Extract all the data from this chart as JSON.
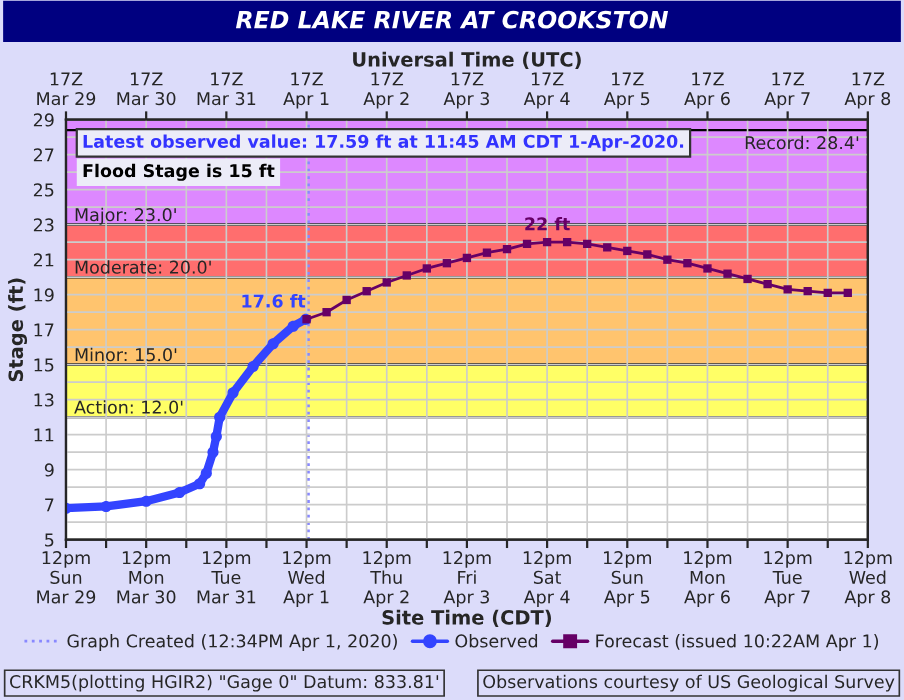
{
  "chart_data": {
    "type": "line",
    "title": "RED LAKE RIVER AT CROOKSTON",
    "xlabel": "Site Time (CDT)",
    "x2label": "Universal Time (UTC)",
    "ylabel": "Stage (ft)",
    "xlim": [
      "2020-03-29T12:00",
      "2020-04-08T12:00"
    ],
    "xticks": [
      {
        "value": "2020-03-29T12:00",
        "label": "12pm\nSun\nMar 29"
      },
      {
        "value": "2020-03-30T00:00",
        "label": null
      },
      {
        "value": "2020-03-30T12:00",
        "label": "12pm\nMon\nMar 30"
      },
      {
        "value": "2020-03-31T00:00",
        "label": null
      },
      {
        "value": "2020-03-31T12:00",
        "label": "12pm\nTue\nMar 31"
      },
      {
        "value": "2020-04-01T00:00",
        "label": null
      },
      {
        "value": "2020-04-01T12:00",
        "label": "12pm\nWed\nApr 1"
      },
      {
        "value": "2020-04-02T00:00",
        "label": null
      },
      {
        "value": "2020-04-02T12:00",
        "label": "12pm\nThu\nApr 2"
      },
      {
        "value": "2020-04-03T00:00",
        "label": null
      },
      {
        "value": "2020-04-03T12:00",
        "label": "12pm\nFri\nApr 3"
      },
      {
        "value": "2020-04-04T00:00",
        "label": null
      },
      {
        "value": "2020-04-04T12:00",
        "label": "12pm\nSat\nApr 4"
      },
      {
        "value": "2020-04-05T00:00",
        "label": null
      },
      {
        "value": "2020-04-05T12:00",
        "label": "12pm\nSun\nApr 5"
      },
      {
        "value": "2020-04-06T00:00",
        "label": null
      },
      {
        "value": "2020-04-06T12:00",
        "label": "12pm\nMon\nApr 6"
      },
      {
        "value": "2020-04-07T00:00",
        "label": null
      },
      {
        "value": "2020-04-07T12:00",
        "label": "12pm\nTue\nApr 7"
      },
      {
        "value": "2020-04-08T00:00",
        "label": null
      },
      {
        "value": "2020-04-08T12:00",
        "label": "12pm\nWed\nApr 8"
      }
    ],
    "x2lim": [
      "2020-03-29T12:00",
      "2020-04-08T12:00"
    ],
    "x2ticks": [
      {
        "value": "2020-03-29T12:00",
        "label": "17Z\nMar 29"
      },
      {
        "value": "2020-03-30T12:00",
        "label": "17Z\nMar 30"
      },
      {
        "value": "2020-03-31T12:00",
        "label": "17Z\nMar 31"
      },
      {
        "value": "2020-04-01T12:00",
        "label": "17Z\nApr 1"
      },
      {
        "value": "2020-04-02T12:00",
        "label": "17Z\nApr 2"
      },
      {
        "value": "2020-04-03T12:00",
        "label": "17Z\nApr 3"
      },
      {
        "value": "2020-04-04T12:00",
        "label": "17Z\nApr 4"
      },
      {
        "value": "2020-04-05T12:00",
        "label": "17Z\nApr 5"
      },
      {
        "value": "2020-04-06T12:00",
        "label": "17Z\nApr 6"
      },
      {
        "value": "2020-04-07T12:00",
        "label": "17Z\nApr 7"
      },
      {
        "value": "2020-04-08T12:00",
        "label": "17Z\nApr 8"
      }
    ],
    "ylim": [
      5,
      29
    ],
    "yticks": [
      5,
      {
        "value": 6,
        "label": null
      },
      7,
      {
        "value": 8,
        "label": null
      },
      9,
      {
        "value": 10,
        "label": null
      },
      11,
      {
        "value": 12,
        "label": null
      },
      13,
      {
        "value": 14,
        "label": null
      },
      15,
      {
        "value": 16,
        "label": null
      },
      17,
      {
        "value": 18,
        "label": null
      },
      19,
      {
        "value": 20,
        "label": null
      },
      21,
      {
        "value": 22,
        "label": null
      },
      23,
      {
        "value": 24,
        "label": null
      },
      25,
      {
        "value": 26,
        "label": null
      },
      27,
      {
        "value": 28,
        "label": null
      },
      29
    ],
    "grid": true,
    "legend": "bottom",
    "line_style": "solid",
    "bands": [
      {
        "axis": "y",
        "from": 12,
        "to": 15,
        "label": "Action: 12.0'",
        "color": "#ffff66"
      },
      {
        "axis": "y",
        "from": 15,
        "to": 20,
        "label": "Minor: 15.0'",
        "color": "#ffc46e"
      },
      {
        "axis": "y",
        "from": 20,
        "to": 23,
        "label": "Moderate: 20.0'",
        "color": "#ff6e6e"
      },
      {
        "axis": "y",
        "from": 23,
        "to": 29,
        "label": "Major: 23.0'",
        "color": "#dd88ff"
      }
    ],
    "ref_lines": [
      {
        "axis": "y",
        "value": 28.4,
        "label": "Record: 28.4'",
        "color": "#000000",
        "line_style": "solid"
      },
      {
        "axis": "x",
        "value": "2020-04-01T12:34",
        "label": "Graph Created (12:34PM Apr 1, 2020)",
        "color": "#8888ff",
        "line_style": "dotted"
      }
    ],
    "series": [
      {
        "name": "Observed",
        "color": "#3344ff",
        "marker": "circle",
        "x": [
          "2020-03-29T12:00",
          "2020-03-30T00:00",
          "2020-03-30T12:00",
          "2020-03-30T22:00",
          "2020-03-31T04:00",
          "2020-03-31T06:00",
          "2020-03-31T08:00",
          "2020-03-31T09:00",
          "2020-03-31T10:00",
          "2020-03-31T14:00",
          "2020-03-31T20:00",
          "2020-04-01T02:00",
          "2020-04-01T08:00",
          "2020-04-01T11:45"
        ],
        "values": [
          6.8,
          6.9,
          7.2,
          7.7,
          8.2,
          8.8,
          10.0,
          10.9,
          12.0,
          13.4,
          14.9,
          16.2,
          17.2,
          17.59
        ]
      },
      {
        "name": "Forecast (issued 10:22AM Apr 1)",
        "color": "#660066",
        "marker": "square",
        "x": [
          "2020-04-01T12:00",
          "2020-04-01T18:00",
          "2020-04-02T00:00",
          "2020-04-02T06:00",
          "2020-04-02T12:00",
          "2020-04-02T18:00",
          "2020-04-03T00:00",
          "2020-04-03T06:00",
          "2020-04-03T12:00",
          "2020-04-03T18:00",
          "2020-04-04T00:00",
          "2020-04-04T06:00",
          "2020-04-04T12:00",
          "2020-04-04T18:00",
          "2020-04-05T00:00",
          "2020-04-05T06:00",
          "2020-04-05T12:00",
          "2020-04-05T18:00",
          "2020-04-06T00:00",
          "2020-04-06T06:00",
          "2020-04-06T12:00",
          "2020-04-06T18:00",
          "2020-04-07T00:00",
          "2020-04-07T06:00",
          "2020-04-07T12:00",
          "2020-04-07T18:00",
          "2020-04-08T00:00",
          "2020-04-08T06:00"
        ],
        "values": [
          17.6,
          18.0,
          18.7,
          19.2,
          19.7,
          20.1,
          20.5,
          20.8,
          21.1,
          21.4,
          21.6,
          21.9,
          22.0,
          22.0,
          21.9,
          21.7,
          21.5,
          21.3,
          21.0,
          20.8,
          20.5,
          20.2,
          19.9,
          19.6,
          19.3,
          19.2,
          19.1,
          19.1
        ]
      }
    ],
    "annotations": [
      "Latest observed value: 17.59 ft at 11:45 AM CDT 1-Apr-2020.",
      "Flood Stage is 15 ft",
      {
        "text": "17.6 ft",
        "x": "2020-04-01T11:45",
        "y": 17.59
      },
      {
        "text": "22 ft",
        "x": "2020-04-04T12:00",
        "y": 22.0
      },
      "CRKM5(plotting HGIR2) \"Gage 0\" Datum: 833.81'",
      "Observations courtesy of US Geological Survey"
    ]
  }
}
